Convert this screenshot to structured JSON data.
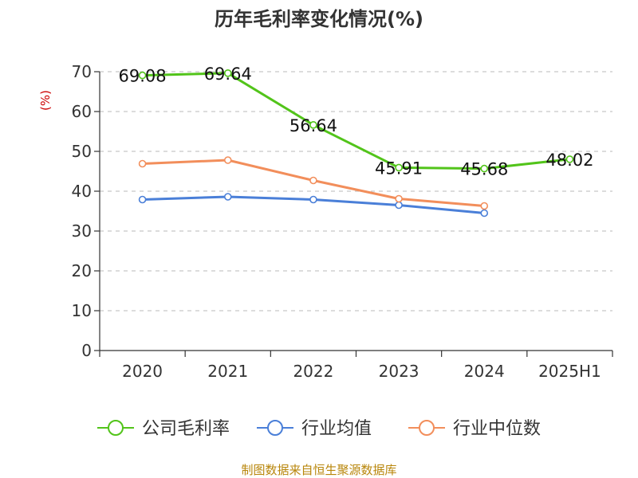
{
  "chart_data": {
    "type": "line",
    "title": "历年毛利率变化情况(%)",
    "ylabel": "(%)",
    "categories": [
      "2020",
      "2021",
      "2022",
      "2023",
      "2024",
      "2025H1"
    ],
    "ylim": [
      0,
      70
    ],
    "yticks": [
      0,
      10,
      20,
      30,
      40,
      50,
      60,
      70
    ],
    "grid": true,
    "legend_position": "bottom",
    "series": [
      {
        "name": "公司毛利率",
        "color": "#52c41a",
        "show_labels": true,
        "values": [
          69.08,
          69.64,
          56.64,
          45.91,
          45.68,
          48.02
        ],
        "labels": [
          "69.08",
          "69.64",
          "56.64",
          "45.91",
          "45.68",
          "48.02"
        ]
      },
      {
        "name": "行业均值",
        "color": "#4a7fd8",
        "show_labels": false,
        "values": [
          37.9,
          38.6,
          37.9,
          36.5,
          34.5,
          null
        ]
      },
      {
        "name": "行业中位数",
        "color": "#f28e5b",
        "show_labels": false,
        "values": [
          46.9,
          47.8,
          42.7,
          38.1,
          36.3,
          null
        ]
      }
    ],
    "source": "制图数据来自恒生聚源数据库"
  }
}
